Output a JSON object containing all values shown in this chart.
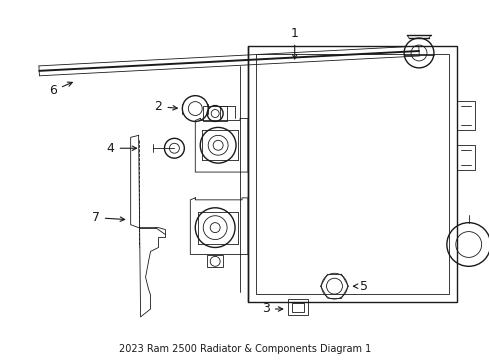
{
  "title": "2023 Ram 2500 Radiator & Components Diagram 1",
  "background_color": "#ffffff",
  "line_color": "#1a1a1a",
  "figsize": [
    4.9,
    3.6
  ],
  "dpi": 100,
  "label_fontsize": 9,
  "title_fontsize": 7
}
